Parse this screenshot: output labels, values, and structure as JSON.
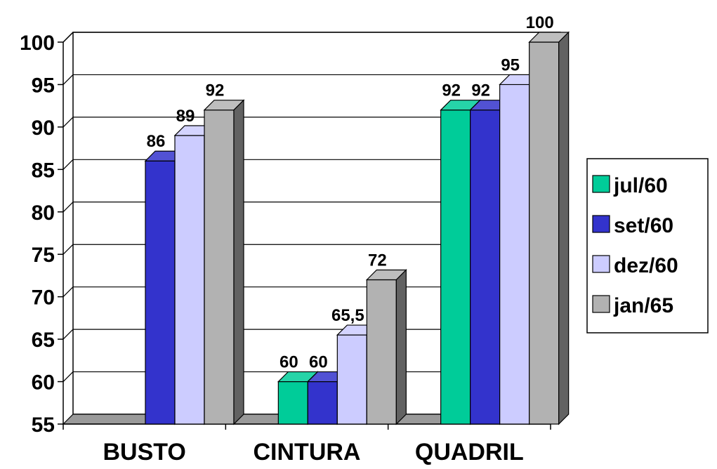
{
  "chart_data": {
    "type": "bar",
    "title": "",
    "xlabel": "",
    "ylabel": "",
    "categories": [
      "BUSTO",
      "CINTURA",
      "QUADRIL"
    ],
    "yticks": [
      "55",
      "60",
      "65",
      "70",
      "75",
      "80",
      "85",
      "90",
      "95",
      "100"
    ],
    "ylim": [
      55,
      100
    ],
    "grid": true,
    "legend_position": "right",
    "series": [
      {
        "name": "jul/60",
        "color": "#00CC99",
        "values": [
          null,
          60,
          92
        ],
        "labels": [
          "",
          "60",
          "92"
        ]
      },
      {
        "name": "set/60",
        "color": "#3333CC",
        "values": [
          86,
          60,
          92
        ],
        "labels": [
          "86",
          "60",
          "92"
        ]
      },
      {
        "name": "dez/60",
        "color": "#CCCCFF",
        "values": [
          89,
          65.5,
          95
        ],
        "labels": [
          "89",
          "65,5",
          "95"
        ]
      },
      {
        "name": "jan/65",
        "color": "#B2B2B2",
        "values": [
          92,
          72,
          100
        ],
        "labels": [
          "92",
          "72",
          "100"
        ]
      }
    ]
  }
}
